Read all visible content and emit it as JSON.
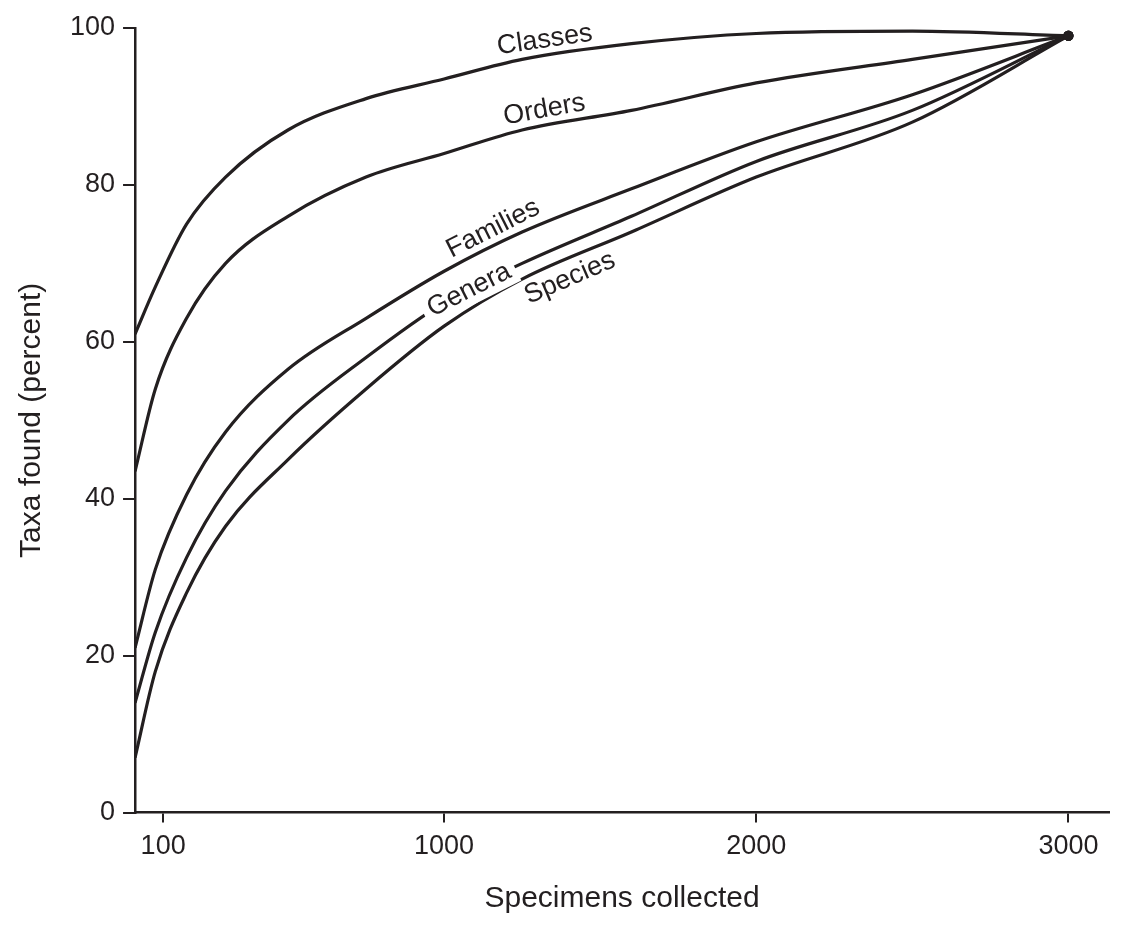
{
  "chart_data": {
    "type": "line",
    "x_label": "Specimens collected",
    "y_label": "Taxa found (percent)",
    "x": [
      10,
      75,
      175,
      300,
      500,
      750,
      1000,
      1250,
      1600,
      2000,
      2500,
      3000
    ],
    "series": [
      {
        "name": "Classes",
        "color": "#231f20",
        "values": [
          61,
          67,
          75,
          81,
          87,
          91,
          93.5,
          96,
          98,
          99.3,
          99.6,
          99
        ]
      },
      {
        "name": "Orders",
        "color": "#231f20",
        "values": [
          43.5,
          54,
          63,
          70,
          76,
          81,
          84,
          87,
          89.5,
          93,
          96,
          99
        ]
      },
      {
        "name": "Families",
        "color": "#231f20",
        "values": [
          21,
          31,
          40.5,
          48.5,
          56.5,
          63,
          69,
          74,
          79.5,
          85.5,
          91.5,
          99
        ]
      },
      {
        "name": "Genera",
        "color": "#231f20",
        "values": [
          14,
          23,
          32.5,
          41,
          50,
          58,
          65,
          70,
          76,
          83,
          89.5,
          99
        ]
      },
      {
        "name": "Species",
        "color": "#231f20",
        "values": [
          7,
          18,
          28,
          36.5,
          45,
          54,
          62,
          68,
          74,
          81,
          88,
          99
        ]
      }
    ],
    "xlim": [
      10,
      3130
    ],
    "xticks": [
      100,
      1000,
      2000,
      3000
    ],
    "ylim": [
      0,
      100
    ],
    "yticks": [
      0,
      20,
      40,
      60,
      80,
      100
    ],
    "grid": false,
    "line_style": "solid"
  }
}
